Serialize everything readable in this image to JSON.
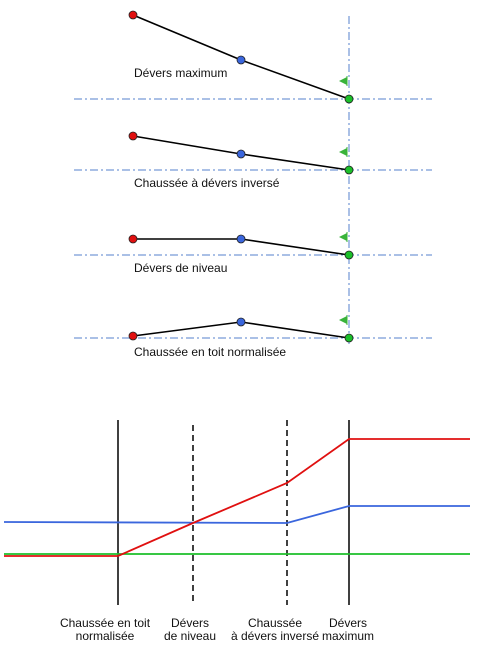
{
  "colors": {
    "outer_edge": "#e01010",
    "centerline": "#3a66dd",
    "inner_edge": "#1bbf2a",
    "axis_dashdot": "#5580cc",
    "flag": "#39b33a",
    "profile_line": "#000000"
  },
  "stages": [
    {
      "label": "Dévers maximum",
      "outer_rel": -84,
      "center_rel": -39
    },
    {
      "label": "Chaussée à dévers inversé",
      "outer_rel": -34,
      "center_rel": -16
    },
    {
      "label": "Dévers de niveau",
      "outer_rel": -16,
      "center_rel": -16
    },
    {
      "label": "Chaussée en toit normalisée",
      "outer_rel": -2,
      "center_rel": -16
    }
  ],
  "transition_labels": [
    {
      "line1": "Chaussée en toit",
      "line2": "normalisée"
    },
    {
      "line1": "Dévers",
      "line2": "de niveau"
    },
    {
      "line1": "Chaussée",
      "line2": "à dévers inversé"
    },
    {
      "line1": "Dévers",
      "line2": "maximum"
    }
  ],
  "profile_chart": {
    "marker_styles": [
      "solid",
      "dashed",
      "dashed",
      "solid"
    ],
    "series": [
      {
        "name": "",
        "color_key": "outer_edge"
      },
      {
        "name": "",
        "color_key": "centerline"
      },
      {
        "name": "",
        "color_key": "inner_edge"
      }
    ]
  }
}
